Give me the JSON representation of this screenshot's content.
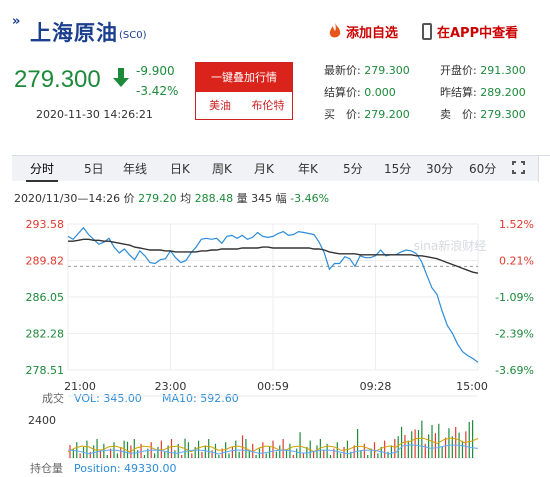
{
  "header": {
    "title": "上海原油",
    "code": "(SC0)",
    "add_fav": "添加自选",
    "app_view": "在APP中查看"
  },
  "quote": {
    "price": "279.300",
    "change": "-9.900",
    "change_pct": "-3.42%",
    "datetime": "2020-11-30 14:26:21"
  },
  "actions": {
    "add_quotes": "一键叠加行情",
    "us_crude": "美油",
    "brent": "布伦特"
  },
  "stats": {
    "latest_label": "最新价:",
    "latest": "279.300",
    "open_label": "开盘价:",
    "open": "291.300",
    "settle_label": "结算价:",
    "settle": "0.000",
    "prev_settle_label": "昨结算:",
    "prev_settle": "289.200",
    "buy_label": "买　价:",
    "buy": "279.200",
    "sell_label": "卖　价:",
    "sell": "279.300"
  },
  "tabs": [
    "分时",
    "5日",
    "年线",
    "日K",
    "周K",
    "月K",
    "年K",
    "5分",
    "15分",
    "30分",
    "60分"
  ],
  "info": {
    "date": "2020/11/30—14:26",
    "price_label": "价",
    "price": "279.20",
    "avg_label": "均",
    "avg": "288.48",
    "vol_label": "量",
    "vol": "345",
    "amp_label": "幅",
    "amp": "-3.46%"
  },
  "chart_data": {
    "type": "line",
    "watermark": "sina新浪财经",
    "x_ticks": [
      "21:00",
      "23:00",
      "00:59",
      "09:28",
      "15:00"
    ],
    "y_left_ticks": [
      "293.58",
      "289.82",
      "286.05",
      "282.28",
      "278.51"
    ],
    "y_right_ticks": [
      "1.52%",
      "0.21%",
      "-1.09%",
      "-2.39%",
      "-3.69%"
    ],
    "ylim": [
      278.51,
      293.58
    ],
    "reference_price": 289.2,
    "series": [
      {
        "values": [
          292.3,
          292.0,
          292.6,
          293.2,
          292.5,
          292.0,
          291.5,
          291.7,
          292.1,
          291.2,
          290.6,
          291.0,
          290.4,
          289.9,
          290.8,
          290.3,
          289.6,
          289.5,
          289.9,
          290.0,
          290.8,
          290.1,
          289.6,
          289.8,
          290.6,
          291.2,
          292.0,
          292.1,
          292.0,
          292.1,
          291.6,
          292.3,
          292.4,
          292.1,
          292.4,
          292.0,
          292.2,
          292.7,
          292.3,
          292.2,
          292.3,
          292.6,
          292.8,
          292.4,
          292.5,
          292.8,
          292.7,
          292.6,
          292.5,
          291.7,
          290.6,
          288.9,
          289.5,
          289.5,
          290.2,
          290.0,
          289.2,
          290.3,
          290.1,
          290.1,
          290.3,
          290.9,
          290.3,
          290.4,
          290.4,
          290.7,
          290.9,
          290.8,
          290.5,
          289.7,
          288.3,
          287.0,
          286.3,
          284.6,
          283.1,
          282.3,
          281.2,
          280.4,
          280.0,
          279.7,
          279.3
        ]
      },
      {
        "values": [
          291.8,
          291.8,
          291.9,
          292.0,
          292.0,
          291.9,
          291.9,
          291.8,
          291.8,
          291.7,
          291.6,
          291.5,
          291.4,
          291.2,
          291.1,
          291.0,
          290.9,
          290.9,
          290.9,
          290.8,
          290.8,
          290.7,
          290.7,
          290.7,
          290.7,
          290.7,
          290.8,
          290.8,
          290.9,
          290.9,
          291.0,
          291.0,
          291.0,
          291.0,
          291.1,
          291.1,
          291.1,
          291.1,
          291.2,
          291.2,
          291.1,
          291.1,
          291.1,
          291.1,
          291.1,
          291.1,
          291.1,
          291.1,
          291.0,
          291.0,
          290.9,
          290.7,
          290.6,
          290.5,
          290.5,
          290.5,
          290.5,
          290.4,
          290.4,
          290.4,
          290.4,
          290.4,
          290.4,
          290.4,
          290.4,
          290.4,
          290.4,
          290.4,
          290.3,
          290.3,
          290.2,
          290.1,
          290.0,
          289.8,
          289.6,
          289.4,
          289.2,
          289.0,
          288.8,
          288.6,
          288.5
        ]
      }
    ],
    "volume_panel": {
      "label": "成交",
      "vol_label": "VOL: 345.00",
      "ma_label": "MA10: 592.60",
      "y_tick": "2400",
      "oi_label": "持仓量",
      "position_label": "Position: 49330.00"
    },
    "colors": {
      "up": "#e03a2e",
      "down": "#1d8a3a",
      "price_line": "#2d8cd8",
      "avg_line": "#333333",
      "volume_ma": "#d2a000",
      "volume_ma2": "#5fa9ff"
    }
  }
}
